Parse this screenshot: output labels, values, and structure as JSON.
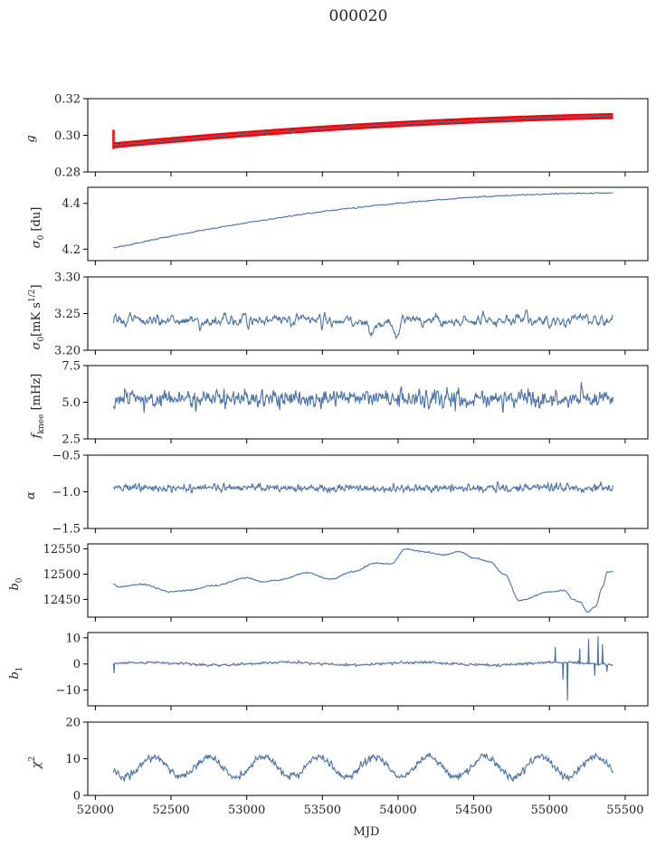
{
  "figure": {
    "title": "000020",
    "xlabel": "MJD"
  },
  "chart_data": {
    "type": "line",
    "shared_x": true,
    "xlim": [
      51950,
      55650
    ],
    "xticks": [
      52000,
      52500,
      53000,
      53500,
      54000,
      54500,
      55000,
      55500
    ],
    "series_color": "#4c72a4",
    "overlay_color": "#ff0000",
    "grid": false,
    "panels": [
      {
        "ylabel": "g",
        "ylim": [
          0.28,
          0.32
        ],
        "yticks": [
          0.28,
          0.3,
          0.32
        ],
        "ytick_labels": [
          "0.28",
          "0.30",
          "0.32"
        ],
        "shape": "trend",
        "start": 0.2945,
        "end": 0.3105,
        "curvature": -0.0025,
        "noise": 0.0006,
        "smooth": 3,
        "overlay": {
          "name": "fit",
          "start": 0.2945,
          "end": 0.3105,
          "curvature": -0.0025,
          "band": 0.0009,
          "spike_at_start": [
            0.2925,
            0.303
          ]
        }
      },
      {
        "ylabel": "σ0 [du]",
        "ylim": [
          4.15,
          4.47
        ],
        "yticks": [
          4.2,
          4.4
        ],
        "ytick_labels": [
          "4.2",
          "4.4"
        ],
        "shape": "trend",
        "start": 4.205,
        "end": 4.445,
        "curvature": -0.06,
        "noise": 0.003,
        "smooth": 3
      },
      {
        "ylabel": "σ0[mK s^1/2]",
        "ylim": [
          3.2,
          3.3
        ],
        "yticks": [
          3.2,
          3.25,
          3.3
        ],
        "ytick_labels": [
          "3.20",
          "3.25",
          "3.30"
        ],
        "shape": "noise",
        "mean": 3.241,
        "noise": 0.011,
        "smooth": 4,
        "dips": [
          [
            53820,
            -0.02
          ],
          [
            53980,
            -0.025
          ],
          [
            53700,
            -0.012
          ]
        ]
      },
      {
        "ylabel": "f_knee [mHz]",
        "ylim": [
          2.5,
          7.5
        ],
        "yticks": [
          2.5,
          5.0,
          7.5
        ],
        "ytick_labels": [
          "2.5",
          "5.0",
          "7.5"
        ],
        "shape": "noise",
        "mean": 5.25,
        "noise": 0.6,
        "smooth": 2
      },
      {
        "ylabel": "α",
        "ylim": [
          -1.5,
          -0.5
        ],
        "yticks": [
          -1.5,
          -1.0,
          -0.5
        ],
        "ytick_labels": [
          "−1.5",
          "−1.0",
          "−0.5"
        ],
        "shape": "noise",
        "mean": -0.95,
        "noise": 0.05,
        "smooth": 2
      },
      {
        "ylabel": "b0",
        "ylim": [
          12415,
          12560
        ],
        "yticks": [
          12450,
          12500,
          12550
        ],
        "ytick_labels": [
          "12450",
          "12500",
          "12550"
        ],
        "shape": "keypoints",
        "noise": 1.2,
        "smooth": 2,
        "keypoints": [
          [
            52120,
            12480
          ],
          [
            52150,
            12475
          ],
          [
            52300,
            12480
          ],
          [
            52500,
            12465
          ],
          [
            52600,
            12468
          ],
          [
            52800,
            12478
          ],
          [
            53000,
            12493
          ],
          [
            53100,
            12485
          ],
          [
            53200,
            12488
          ],
          [
            53400,
            12503
          ],
          [
            53550,
            12490
          ],
          [
            53700,
            12505
          ],
          [
            53850,
            12522
          ],
          [
            53950,
            12520
          ],
          [
            54050,
            12550
          ],
          [
            54150,
            12545
          ],
          [
            54300,
            12538
          ],
          [
            54400,
            12545
          ],
          [
            54500,
            12532
          ],
          [
            54600,
            12525
          ],
          [
            54700,
            12500
          ],
          [
            54800,
            12448
          ],
          [
            55000,
            12465
          ],
          [
            55100,
            12468
          ],
          [
            55150,
            12450
          ],
          [
            55200,
            12445
          ],
          [
            55250,
            12425
          ],
          [
            55300,
            12435
          ],
          [
            55350,
            12475
          ],
          [
            55380,
            12505
          ],
          [
            55420,
            12505
          ]
        ]
      },
      {
        "ylabel": "b1",
        "ylim": [
          -16,
          12
        ],
        "yticks": [
          -10,
          0,
          10
        ],
        "ytick_labels": [
          "−10",
          "0",
          "10"
        ],
        "shape": "noise",
        "mean": 0.1,
        "noise": 0.45,
        "smooth": 2,
        "wavy": 0.5,
        "spikes": [
          [
            52125,
            -3.5
          ],
          [
            55040,
            6.5
          ],
          [
            55090,
            -6.0
          ],
          [
            55120,
            -14.0
          ],
          [
            55200,
            6.0
          ],
          [
            55260,
            9.5
          ],
          [
            55300,
            -4.5
          ],
          [
            55320,
            10.5
          ],
          [
            55350,
            7.5
          ],
          [
            55380,
            -3.0
          ]
        ]
      },
      {
        "ylabel": "χ2",
        "ylim": [
          0,
          20
        ],
        "yticks": [
          0,
          10,
          20
        ],
        "ytick_labels": [
          "0",
          "10",
          "20"
        ],
        "shape": "periodic",
        "mean": 7.8,
        "amp": 2.8,
        "period": 365,
        "phase": 52290,
        "noise": 0.9,
        "smooth": 2
      }
    ]
  }
}
